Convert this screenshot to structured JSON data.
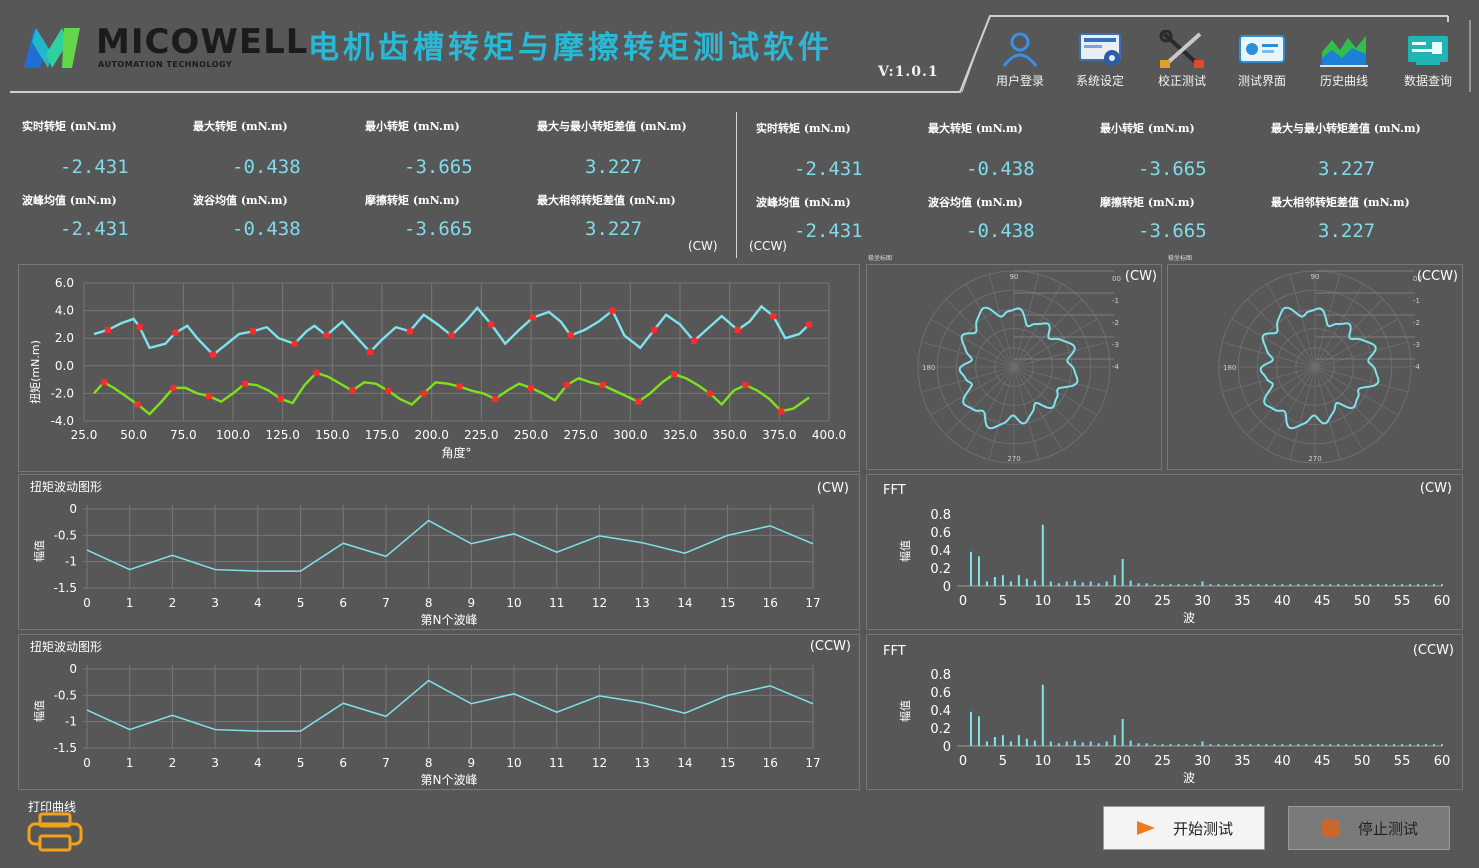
{
  "header": {
    "brand": "MICOWELL",
    "brand_sub": "AUTOMATION TECHNOLOGY",
    "title": "电机齿槽转矩与摩擦转矩测试软件",
    "version": "V:1.0.1",
    "nav": [
      {
        "label": "用户登录",
        "icon": "user-login-icon"
      },
      {
        "label": "系统设定",
        "icon": "system-settings-icon"
      },
      {
        "label": "校正测试",
        "icon": "calibration-tools-icon"
      },
      {
        "label": "测试界面",
        "icon": "test-interface-icon"
      },
      {
        "label": "历史曲线",
        "icon": "history-curve-icon"
      },
      {
        "label": "数据查询",
        "icon": "data-query-icon"
      }
    ]
  },
  "metrics": {
    "cw": {
      "tag": "(CW)",
      "items": [
        {
          "label": "实时转矩 (mN.m)",
          "value": "-2.431"
        },
        {
          "label": "最大转矩 (mN.m)",
          "value": "-0.438"
        },
        {
          "label": "最小转矩 (mN.m)",
          "value": "-3.665"
        },
        {
          "label": "最大与最小转矩差值 (mN.m)",
          "value": "3.227"
        },
        {
          "label": "波峰均值 (mN.m)",
          "value": "-2.431"
        },
        {
          "label": "波谷均值 (mN.m)",
          "value": "-0.438"
        },
        {
          "label": "摩擦转矩 (mN.m)",
          "value": "-3.665"
        },
        {
          "label": "最大相邻转矩差值 (mN.m)",
          "value": "3.227"
        }
      ]
    },
    "ccw": {
      "tag": "(CCW)",
      "items": [
        {
          "label": "实时转矩 (mN.m)",
          "value": "-2.431"
        },
        {
          "label": "最大转矩 (mN.m)",
          "value": "-0.438"
        },
        {
          "label": "最小转矩 (mN.m)",
          "value": "-3.665"
        },
        {
          "label": "最大与最小转矩差值 (mN.m)",
          "value": "3.227"
        },
        {
          "label": "波峰均值 (mN.m)",
          "value": "-2.431"
        },
        {
          "label": "波谷均值 (mN.m)",
          "value": "-0.438"
        },
        {
          "label": "摩擦转矩 (mN.m)",
          "value": "-3.665"
        },
        {
          "label": "最大相邻转矩差值 (mN.m)",
          "value": "3.227"
        }
      ]
    }
  },
  "colors": {
    "cyan": "#7fe3ee",
    "green": "#7ee21a",
    "red_marker": "#ff2a2a",
    "title": "#2ab8d6",
    "grid": "#777777"
  },
  "polar": [
    {
      "title": "极坐标图",
      "dir": "(CW)",
      "angle_labels": [
        "90",
        "180",
        "270"
      ],
      "radial_labels": [
        "00",
        "-1",
        "-2",
        "-3",
        "-4"
      ]
    },
    {
      "title": "极坐标图",
      "dir": "(CCW)",
      "angle_labels": [
        "90",
        "180",
        "270"
      ],
      "radial_labels": [
        "00",
        "-1",
        "-2",
        "-3",
        "-4"
      ]
    }
  ],
  "wave_panels": [
    {
      "title": "扭矩波动图形",
      "dir": "(CW)"
    },
    {
      "title": "扭矩波动图形",
      "dir": "(CCW)"
    }
  ],
  "fft_panels": [
    {
      "title": "FFT",
      "dir": "(CW)"
    },
    {
      "title": "FFT",
      "dir": "(CCW)"
    }
  ],
  "chart_data": [
    {
      "type": "line",
      "name": "torque-angle",
      "xlabel": "角度°",
      "ylabel": "扭矩(mN.m)",
      "xlim": [
        25,
        400
      ],
      "ylim": [
        -4,
        6
      ],
      "xticks": [
        "25.0",
        "50.0",
        "75.0",
        "100.0",
        "125.0",
        "150.0",
        "175.0",
        "200.0",
        "225.0",
        "250.0",
        "275.0",
        "300.0",
        "325.0",
        "350.0",
        "375.0",
        "400.0"
      ],
      "yticks": [
        "6.0",
        "4.0",
        "2.0",
        "0.0",
        "-2.0",
        "-4.0"
      ],
      "series": [
        {
          "color": "#7fe3ee",
          "x": [
            30,
            37,
            44,
            50,
            53,
            58,
            66,
            71,
            77,
            82,
            90,
            97,
            103,
            110,
            117,
            123,
            131,
            137,
            141,
            147,
            155,
            162,
            169,
            175,
            182,
            189,
            196,
            203,
            210,
            217,
            223,
            230,
            237,
            244,
            251,
            259,
            265,
            270,
            277,
            284,
            291,
            297,
            305,
            312,
            318,
            325,
            332,
            339,
            346,
            354,
            360,
            366,
            372,
            378,
            385,
            390
          ],
          "y": [
            2.3,
            2.6,
            3.1,
            3.4,
            2.8,
            1.3,
            1.6,
            2.4,
            2.9,
            2.0,
            0.8,
            1.6,
            2.3,
            2.5,
            2.8,
            2.0,
            1.6,
            2.5,
            2.9,
            2.2,
            3.2,
            2.1,
            1.0,
            1.9,
            2.8,
            2.5,
            3.7,
            3.0,
            2.2,
            3.2,
            4.2,
            3.0,
            1.6,
            2.6,
            3.5,
            3.9,
            3.2,
            2.2,
            2.6,
            3.2,
            4.0,
            2.2,
            1.3,
            2.6,
            3.7,
            3.0,
            1.8,
            2.7,
            3.6,
            2.6,
            3.2,
            4.3,
            3.6,
            2.0,
            2.3,
            3.0
          ]
        },
        {
          "color": "#7ee21a",
          "x": [
            30,
            35,
            40,
            46,
            52,
            58,
            64,
            70,
            76,
            82,
            88,
            94,
            100,
            106,
            112,
            118,
            124,
            130,
            136,
            142,
            148,
            154,
            160,
            166,
            172,
            178,
            184,
            190,
            196,
            202,
            208,
            214,
            220,
            226,
            232,
            238,
            244,
            250,
            256,
            262,
            268,
            274,
            280,
            286,
            292,
            298,
            304,
            310,
            316,
            322,
            328,
            334,
            340,
            346,
            352,
            358,
            364,
            370,
            376,
            382,
            390
          ],
          "y": [
            -2.0,
            -1.2,
            -1.6,
            -2.2,
            -2.8,
            -3.5,
            -2.6,
            -1.6,
            -1.6,
            -2.0,
            -2.2,
            -2.6,
            -2.0,
            -1.3,
            -1.4,
            -1.8,
            -2.4,
            -2.7,
            -1.4,
            -0.5,
            -0.8,
            -1.3,
            -1.8,
            -1.2,
            -1.3,
            -1.8,
            -2.4,
            -2.8,
            -2.0,
            -1.2,
            -1.3,
            -1.5,
            -1.8,
            -2.0,
            -2.4,
            -1.8,
            -1.3,
            -1.6,
            -2.0,
            -2.5,
            -1.4,
            -0.9,
            -1.2,
            -1.4,
            -1.8,
            -2.2,
            -2.6,
            -2.0,
            -1.2,
            -0.6,
            -0.9,
            -1.4,
            -2.0,
            -2.8,
            -1.8,
            -1.4,
            -1.8,
            -2.4,
            -3.3,
            -3.1,
            -2.3
          ]
        }
      ]
    },
    {
      "type": "line",
      "name": "torque-wave-cw",
      "xlabel": "第N个波峰",
      "ylabel": "幅值",
      "xlim": [
        0,
        17
      ],
      "ylim": [
        -1.5,
        0
      ],
      "xticks": [
        "0",
        "1",
        "2",
        "3",
        "4",
        "5",
        "6",
        "7",
        "8",
        "9",
        "10",
        "11",
        "12",
        "13",
        "14",
        "15",
        "16",
        "17"
      ],
      "yticks": [
        "0",
        "-0.5",
        "-1",
        "-1.5"
      ],
      "x": [
        0,
        1,
        2,
        3,
        4,
        5,
        6,
        7,
        8,
        9,
        10,
        11,
        12,
        13,
        14,
        15,
        16,
        17
      ],
      "values": [
        -0.78,
        -1.15,
        -0.88,
        -1.15,
        -1.18,
        -1.18,
        -0.65,
        -0.9,
        -0.22,
        -0.66,
        -0.47,
        -0.82,
        -0.51,
        -0.64,
        -0.84,
        -0.5,
        -0.32,
        -0.66
      ]
    },
    {
      "type": "line",
      "name": "torque-wave-ccw",
      "xlabel": "第N个波峰",
      "ylabel": "幅值",
      "xlim": [
        0,
        17
      ],
      "ylim": [
        -1.5,
        0
      ],
      "xticks": [
        "0",
        "1",
        "2",
        "3",
        "4",
        "5",
        "6",
        "7",
        "8",
        "9",
        "10",
        "11",
        "12",
        "13",
        "14",
        "15",
        "16",
        "17"
      ],
      "yticks": [
        "0",
        "-0.5",
        "-1",
        "-1.5"
      ],
      "x": [
        0,
        1,
        2,
        3,
        4,
        5,
        6,
        7,
        8,
        9,
        10,
        11,
        12,
        13,
        14,
        15,
        16,
        17
      ],
      "values": [
        -0.78,
        -1.15,
        -0.88,
        -1.15,
        -1.18,
        -1.18,
        -0.65,
        -0.9,
        -0.22,
        -0.66,
        -0.47,
        -0.82,
        -0.51,
        -0.64,
        -0.84,
        -0.5,
        -0.32,
        -0.66
      ]
    },
    {
      "type": "bar",
      "name": "fft-cw",
      "xlabel": "波",
      "ylabel": "幅值",
      "xlim": [
        0,
        60
      ],
      "ylim": [
        0,
        0.8
      ],
      "xticks": [
        "0",
        "5",
        "10",
        "15",
        "20",
        "25",
        "30",
        "35",
        "40",
        "45",
        "50",
        "55",
        "60"
      ],
      "yticks": [
        "0.8",
        "0.6",
        "0.4",
        "0.2",
        "0"
      ],
      "x": [
        1,
        2,
        3,
        4,
        5,
        6,
        7,
        8,
        9,
        10,
        11,
        12,
        13,
        14,
        15,
        16,
        17,
        18,
        19,
        20,
        21,
        22,
        23,
        24,
        25,
        26,
        27,
        28,
        29,
        30,
        31,
        32,
        33,
        34,
        35,
        36,
        37,
        38,
        39,
        40,
        41,
        42,
        43,
        44,
        45,
        46,
        47,
        48,
        49,
        50,
        51,
        52,
        53,
        54,
        55,
        56,
        57,
        58,
        59,
        60
      ],
      "values": [
        0.38,
        0.33,
        0.05,
        0.1,
        0.12,
        0.05,
        0.12,
        0.08,
        0.06,
        0.68,
        0.05,
        0.03,
        0.05,
        0.06,
        0.04,
        0.05,
        0.03,
        0.05,
        0.12,
        0.3,
        0.06,
        0.03,
        0.03,
        0.02,
        0.02,
        0.02,
        0.02,
        0.02,
        0.02,
        0.05,
        0.02,
        0.02,
        0.02,
        0.02,
        0.02,
        0.02,
        0.02,
        0.02,
        0.02,
        0.02,
        0.02,
        0.02,
        0.02,
        0.02,
        0.02,
        0.02,
        0.02,
        0.02,
        0.02,
        0.02,
        0.02,
        0.02,
        0.02,
        0.02,
        0.02,
        0.02,
        0.02,
        0.02,
        0.02,
        0.02
      ]
    },
    {
      "type": "bar",
      "name": "fft-ccw",
      "xlabel": "波",
      "ylabel": "幅值",
      "xlim": [
        0,
        60
      ],
      "ylim": [
        0,
        0.8
      ],
      "xticks": [
        "0",
        "5",
        "10",
        "15",
        "20",
        "25",
        "30",
        "35",
        "40",
        "45",
        "50",
        "55",
        "60"
      ],
      "yticks": [
        "0.8",
        "0.6",
        "0.4",
        "0.2",
        "0"
      ],
      "x": [
        1,
        2,
        3,
        4,
        5,
        6,
        7,
        8,
        9,
        10,
        11,
        12,
        13,
        14,
        15,
        16,
        17,
        18,
        19,
        20,
        21,
        22,
        23,
        24,
        25,
        26,
        27,
        28,
        29,
        30,
        31,
        32,
        33,
        34,
        35,
        36,
        37,
        38,
        39,
        40,
        41,
        42,
        43,
        44,
        45,
        46,
        47,
        48,
        49,
        50,
        51,
        52,
        53,
        54,
        55,
        56,
        57,
        58,
        59,
        60
      ],
      "values": [
        0.38,
        0.33,
        0.05,
        0.1,
        0.12,
        0.05,
        0.12,
        0.08,
        0.06,
        0.68,
        0.05,
        0.03,
        0.05,
        0.06,
        0.04,
        0.05,
        0.03,
        0.05,
        0.12,
        0.3,
        0.06,
        0.03,
        0.03,
        0.02,
        0.02,
        0.02,
        0.02,
        0.02,
        0.02,
        0.05,
        0.02,
        0.02,
        0.02,
        0.02,
        0.02,
        0.02,
        0.02,
        0.02,
        0.02,
        0.02,
        0.02,
        0.02,
        0.02,
        0.02,
        0.02,
        0.02,
        0.02,
        0.02,
        0.02,
        0.02,
        0.02,
        0.02,
        0.02,
        0.02,
        0.02,
        0.02,
        0.02,
        0.02,
        0.02,
        0.02
      ]
    }
  ],
  "footer": {
    "print_label": "打印曲线",
    "start_label": "开始测试",
    "stop_label": "停止测试"
  }
}
